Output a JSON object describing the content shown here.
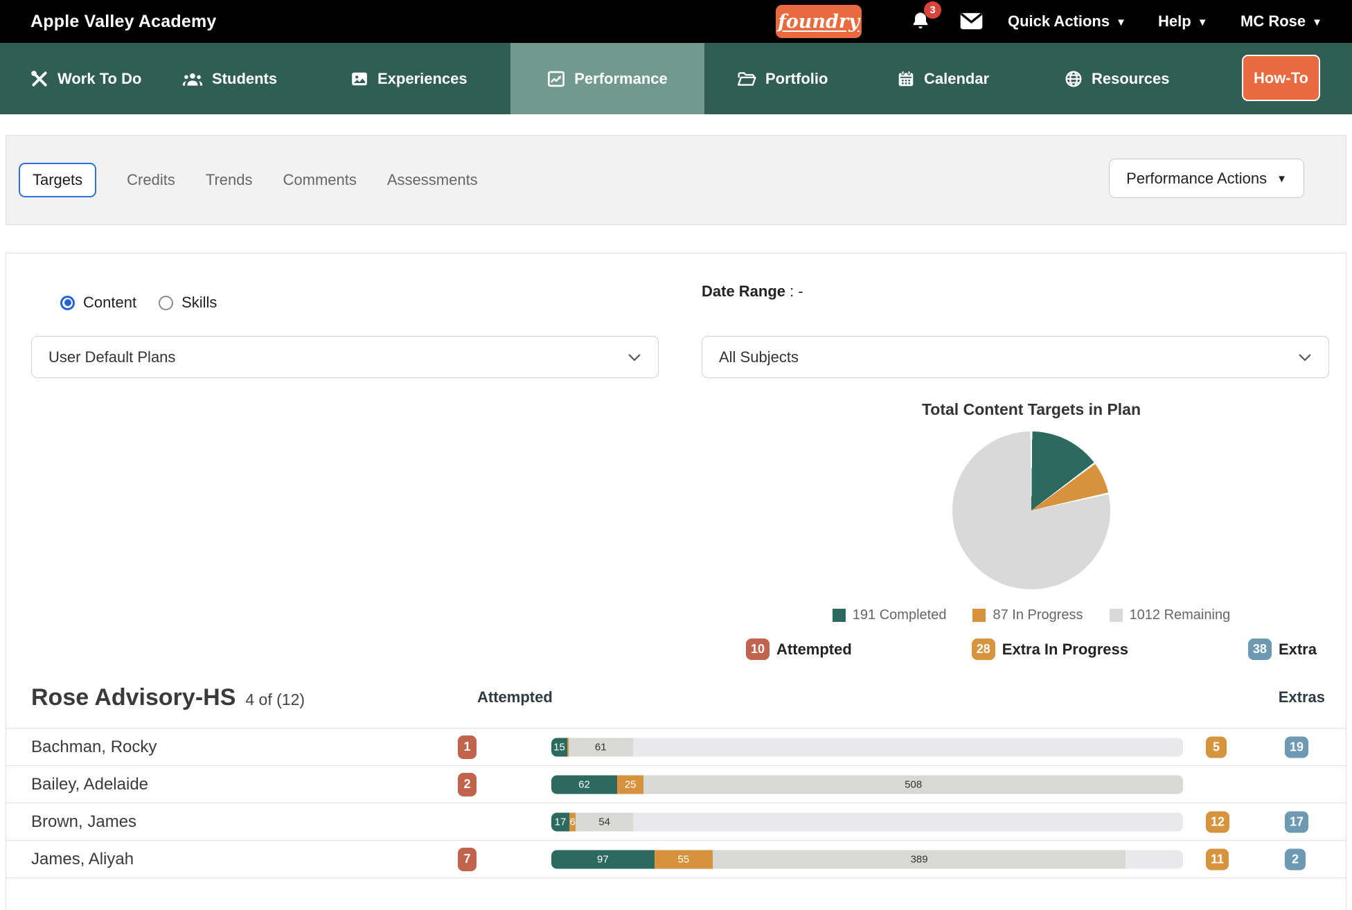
{
  "topbar": {
    "school": "Apple Valley Academy",
    "logo_text": "foundry",
    "notification_count": "3",
    "quick_actions_label": "Quick Actions",
    "help_label": "Help",
    "user_label": "MC Rose"
  },
  "nav": {
    "items": [
      {
        "label": "Work To Do",
        "icon": "tools-icon",
        "active": false
      },
      {
        "label": "Students",
        "icon": "students-icon",
        "active": false
      },
      {
        "label": "Experiences",
        "icon": "image-icon",
        "active": false
      },
      {
        "label": "Performance",
        "icon": "chart-line-icon",
        "active": true
      },
      {
        "label": "Portfolio",
        "icon": "folder-open-icon",
        "active": false
      },
      {
        "label": "Calendar",
        "icon": "calendar-icon",
        "active": false
      },
      {
        "label": "Resources",
        "icon": "globe-icon",
        "active": false
      }
    ],
    "howto_label": "How-To"
  },
  "subnav": {
    "tabs": [
      {
        "label": "Targets",
        "active": true
      },
      {
        "label": "Credits",
        "active": false
      },
      {
        "label": "Trends",
        "active": false
      },
      {
        "label": "Comments",
        "active": false
      },
      {
        "label": "Assessments",
        "active": false
      }
    ],
    "actions_label": "Performance Actions"
  },
  "filters": {
    "content_label": "Content",
    "skills_label": "Skills",
    "selected_radio": "content",
    "plan_select_value": "User Default Plans",
    "date_range_label": "Date Range",
    "date_range_separator": ":",
    "date_range_value": "-",
    "subject_select_value": "All Subjects"
  },
  "chart_data": [
    {
      "type": "pie",
      "title": "Total Content Targets in Plan",
      "labels": [
        "Completed",
        "In Progress",
        "Remaining"
      ],
      "values": [
        191,
        87,
        1012
      ],
      "colors": [
        "#2C6A60",
        "#D6923C",
        "#D9D9D9"
      ],
      "legend_position": "bottom"
    },
    {
      "type": "bar",
      "subtype": "stacked-horizontal",
      "categories": [
        "Bachman, Rocky",
        "Bailey, Adelaide",
        "Brown, James",
        "James, Aliyah"
      ],
      "series": [
        {
          "name": "Completed",
          "color": "#2C6A60",
          "values": [
            15,
            62,
            17,
            97
          ]
        },
        {
          "name": "In Progress",
          "color": "#D6923C",
          "values": [
            1,
            25,
            6,
            55
          ]
        },
        {
          "name": "Remaining",
          "color": "#D8D8D4",
          "values": [
            61,
            508,
            54,
            389
          ]
        }
      ],
      "x_max": 595
    }
  ],
  "summary_badges": [
    {
      "value": "10",
      "label": "Attempted"
    },
    {
      "value": "28",
      "label": "Extra In Progress"
    },
    {
      "value": "38",
      "label": "Extra"
    }
  ],
  "roster": {
    "title": "Rose Advisory-HS",
    "count_text": "4 of (12)",
    "attempted_header": "Attempted",
    "extras_header": "Extras",
    "bar_max": 595,
    "rows": [
      {
        "name": "Bachman, Rocky",
        "attempted": "1",
        "segments": [
          {
            "key": "completed",
            "value": 15,
            "label": "15"
          },
          {
            "key": "in_progress",
            "value": 1,
            "label": ""
          },
          {
            "key": "remaining",
            "value": 61,
            "label": "61"
          }
        ],
        "extra_in_progress": "5",
        "extra": "19"
      },
      {
        "name": "Bailey, Adelaide",
        "attempted": "2",
        "segments": [
          {
            "key": "completed",
            "value": 62,
            "label": "62"
          },
          {
            "key": "in_progress",
            "value": 25,
            "label": "25"
          },
          {
            "key": "remaining",
            "value": 508,
            "label": "508"
          }
        ],
        "extra_in_progress": "",
        "extra": ""
      },
      {
        "name": "Brown, James",
        "attempted": "",
        "segments": [
          {
            "key": "completed",
            "value": 17,
            "label": "17"
          },
          {
            "key": "in_progress",
            "value": 6,
            "label": "6"
          },
          {
            "key": "remaining",
            "value": 54,
            "label": "54"
          }
        ],
        "extra_in_progress": "12",
        "extra": "17"
      },
      {
        "name": "James, Aliyah",
        "attempted": "7",
        "segments": [
          {
            "key": "completed",
            "value": 97,
            "label": "97"
          },
          {
            "key": "in_progress",
            "value": 55,
            "label": "55"
          },
          {
            "key": "remaining",
            "value": 389,
            "label": "389"
          }
        ],
        "extra_in_progress": "11",
        "extra": "2"
      }
    ]
  },
  "colors": {
    "brand_orange": "#E96A3F",
    "nav_green": "#315E54",
    "nav_active_green": "#72998E",
    "completed_teal": "#2C6A60",
    "in_progress_orange": "#D6923C",
    "remaining_gray": "#D8D8D4",
    "pie_remaining_gray": "#D9D9D9",
    "attempted_badge_red": "#C2634E",
    "extra_ip_badge_orange": "#D6943F",
    "extra_badge_blue": "#6D9AB2",
    "accent_blue": "#2F6FDE",
    "notification_red": "#D9433B"
  }
}
